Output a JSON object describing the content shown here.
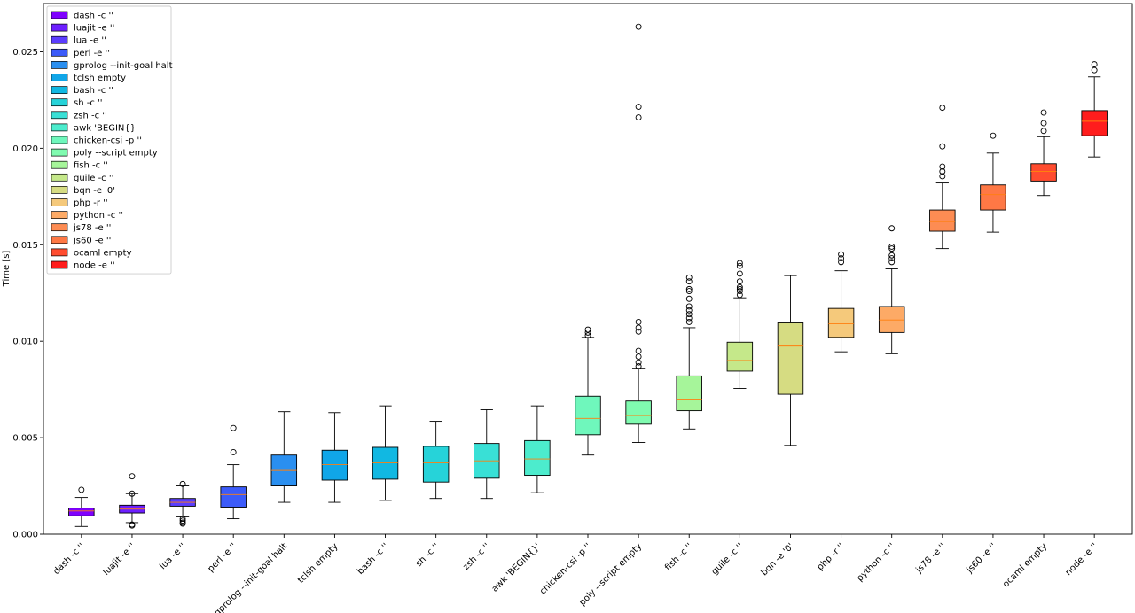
{
  "chart_data": {
    "type": "box",
    "title": "",
    "xlabel": "",
    "ylabel": "Time [s]",
    "ylim": [
      0.0,
      0.0275
    ],
    "yticks": [
      0.0,
      0.005,
      0.01,
      0.015,
      0.02,
      0.025
    ],
    "ytick_labels": [
      "0.000",
      "0.005",
      "0.010",
      "0.015",
      "0.020",
      "0.025"
    ],
    "legend_position": "upper-left",
    "series": [
      {
        "name": "dash -c ''",
        "color": "#7f00ff",
        "whislo": 0.0004,
        "q1": 0.00095,
        "median": 0.0012,
        "q3": 0.00135,
        "whishi": 0.0019,
        "fliers": [
          0.0023
        ]
      },
      {
        "name": "luajit -e ''",
        "color": "#6d1fff",
        "whislo": 0.0006,
        "q1": 0.0011,
        "median": 0.0013,
        "q3": 0.0015,
        "whishi": 0.0021,
        "fliers": [
          0.003,
          0.0021,
          0.0005,
          0.00045
        ]
      },
      {
        "name": "lua -e ''",
        "color": "#5b3dfe",
        "whislo": 0.0009,
        "q1": 0.00145,
        "median": 0.00165,
        "q3": 0.00185,
        "whishi": 0.0025,
        "fliers": [
          0.0026,
          0.0008,
          0.0007,
          0.0006,
          0.00055
        ]
      },
      {
        "name": "perl -e ''",
        "color": "#3c5bf9",
        "whislo": 0.0008,
        "q1": 0.0014,
        "median": 0.00205,
        "q3": 0.00245,
        "whishi": 0.0036,
        "fliers": [
          0.0055,
          0.00425
        ]
      },
      {
        "name": "gprolog --init-goal halt",
        "color": "#2a8ff0",
        "whislo": 0.00165,
        "q1": 0.0025,
        "median": 0.0033,
        "q3": 0.0041,
        "whishi": 0.00635,
        "fliers": []
      },
      {
        "name": "tclsh empty",
        "color": "#10a6e8",
        "whislo": 0.00165,
        "q1": 0.0028,
        "median": 0.0036,
        "q3": 0.00435,
        "whishi": 0.0063,
        "fliers": []
      },
      {
        "name": "bash -c ''",
        "color": "#11b8e2",
        "whislo": 0.00175,
        "q1": 0.00285,
        "median": 0.0037,
        "q3": 0.0045,
        "whishi": 0.00665,
        "fliers": []
      },
      {
        "name": "sh -c ''",
        "color": "#26d3d9",
        "whislo": 0.00185,
        "q1": 0.0027,
        "median": 0.0037,
        "q3": 0.00455,
        "whishi": 0.00585,
        "fliers": []
      },
      {
        "name": "zsh -c ''",
        "color": "#39e0d6",
        "whislo": 0.00185,
        "q1": 0.0029,
        "median": 0.0038,
        "q3": 0.0047,
        "whishi": 0.00645,
        "fliers": []
      },
      {
        "name": "awk 'BEGIN{}'",
        "color": "#4ceccd",
        "whislo": 0.00215,
        "q1": 0.00305,
        "median": 0.0039,
        "q3": 0.00485,
        "whishi": 0.00665,
        "fliers": []
      },
      {
        "name": "chicken-csi -p ''",
        "color": "#6ff7bc",
        "whislo": 0.0041,
        "q1": 0.00515,
        "median": 0.006,
        "q3": 0.00715,
        "whishi": 0.0102,
        "fliers": [
          0.0106,
          0.01045,
          0.0103
        ]
      },
      {
        "name": "poly --script empty",
        "color": "#80fbb0",
        "whislo": 0.00475,
        "q1": 0.0057,
        "median": 0.00615,
        "q3": 0.0069,
        "whishi": 0.0086,
        "fliers": [
          0.0263,
          0.02215,
          0.0216,
          0.011,
          0.0107,
          0.0105,
          0.0095,
          0.0092,
          0.0089,
          0.0087
        ]
      },
      {
        "name": "fish -c ''",
        "color": "#a6f59a",
        "whislo": 0.00545,
        "q1": 0.0064,
        "median": 0.007,
        "q3": 0.0082,
        "whishi": 0.0107,
        "fliers": [
          0.0133,
          0.0131,
          0.0127,
          0.0126,
          0.0122,
          0.0118,
          0.0116,
          0.0114,
          0.0112,
          0.011
        ]
      },
      {
        "name": "guile -c ''",
        "color": "#c5e88a",
        "whislo": 0.00755,
        "q1": 0.00845,
        "median": 0.009,
        "q3": 0.00995,
        "whishi": 0.01225,
        "fliers": [
          0.01405,
          0.0139,
          0.0135,
          0.0131,
          0.0128,
          0.0127,
          0.0126,
          0.0124
        ]
      },
      {
        "name": "bqn -e '0'",
        "color": "#d6dc82",
        "whislo": 0.0046,
        "q1": 0.00725,
        "median": 0.00975,
        "q3": 0.01095,
        "whishi": 0.0134,
        "fliers": []
      },
      {
        "name": "php -r ''",
        "color": "#f5c97b",
        "whislo": 0.00945,
        "q1": 0.0102,
        "median": 0.0109,
        "q3": 0.0117,
        "whishi": 0.01365,
        "fliers": [
          0.0145,
          0.0143,
          0.0141
        ]
      },
      {
        "name": "python -c ''",
        "color": "#fdaa66",
        "whislo": 0.00935,
        "q1": 0.01045,
        "median": 0.0111,
        "q3": 0.0118,
        "whishi": 0.01375,
        "fliers": [
          0.01585,
          0.0149,
          0.0148,
          0.01445,
          0.0143,
          0.0141
        ]
      },
      {
        "name": "js78 -e ''",
        "color": "#fd8c53",
        "whislo": 0.0148,
        "q1": 0.0157,
        "median": 0.0162,
        "q3": 0.0168,
        "whishi": 0.0182,
        "fliers": [
          0.0221,
          0.0201,
          0.01905,
          0.0188,
          0.01855
        ]
      },
      {
        "name": "js60 -e ''",
        "color": "#fe7845",
        "whislo": 0.01565,
        "q1": 0.0168,
        "median": 0.0176,
        "q3": 0.0181,
        "whishi": 0.01975,
        "fliers": [
          0.02065
        ]
      },
      {
        "name": "ocaml empty",
        "color": "#ff4c2f",
        "whislo": 0.01755,
        "q1": 0.0183,
        "median": 0.0188,
        "q3": 0.0192,
        "whishi": 0.0206,
        "fliers": [
          0.02185,
          0.0213,
          0.0209
        ]
      },
      {
        "name": "node -e ''",
        "color": "#ff1d1d",
        "whislo": 0.01955,
        "q1": 0.02065,
        "median": 0.0214,
        "q3": 0.02195,
        "whishi": 0.0237,
        "fliers": [
          0.02435,
          0.02405
        ]
      }
    ]
  }
}
